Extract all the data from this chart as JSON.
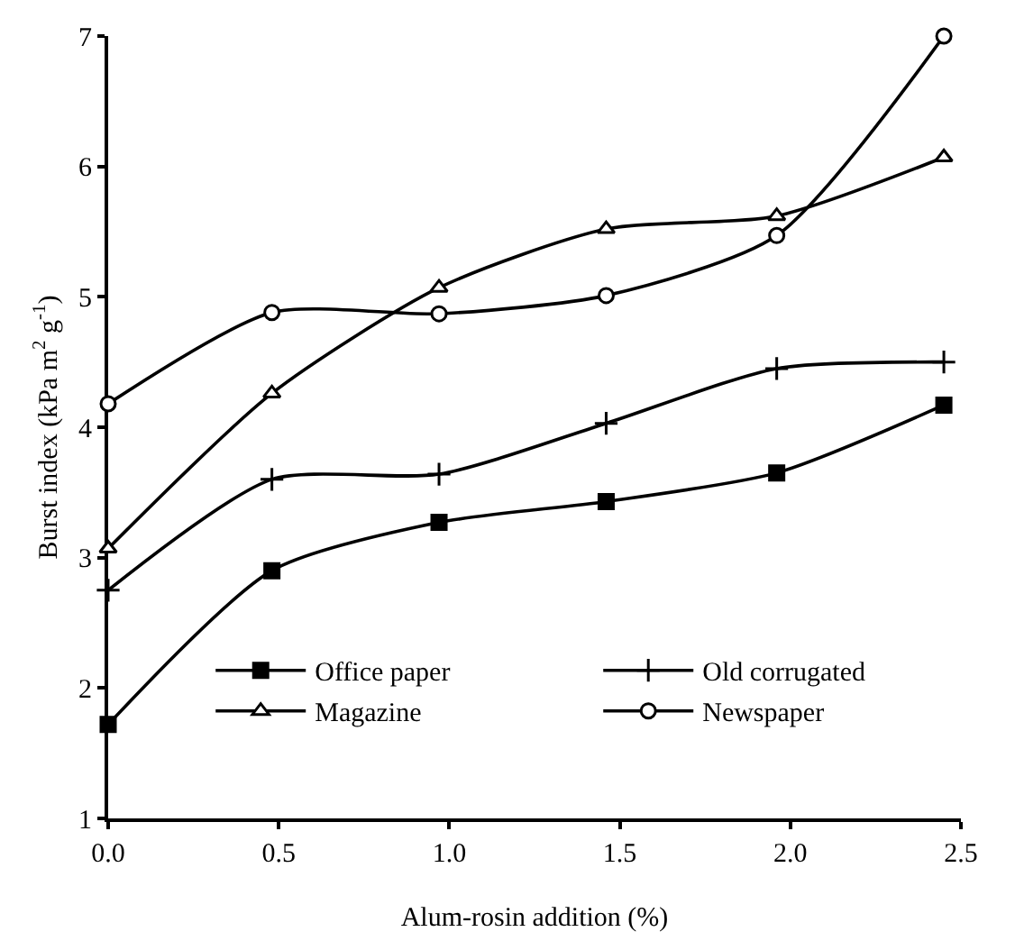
{
  "chart_data": {
    "type": "line",
    "xlabel": "Alum-rosin addition (%)",
    "ylabel": "Burst index (kPa m$^{2}$ g$^{-1}$)",
    "x": [
      0,
      0.48,
      0.97,
      1.46,
      1.96,
      2.45
    ],
    "xlim": [
      0,
      2.5
    ],
    "xticks": [
      {
        "value": 0,
        "label": "0.0"
      },
      0.5,
      {
        "value": 1,
        "label": "1.0"
      },
      1.5,
      {
        "value": 2,
        "label": "2.0"
      },
      2.5
    ],
    "ylim": [
      1,
      7
    ],
    "yticks": [
      1,
      2,
      3,
      4,
      5,
      6,
      7
    ],
    "legend": "bottom",
    "series": [
      {
        "name": "Office paper",
        "color": "#000000",
        "marker": "square",
        "values": [
          1.72,
          2.9,
          3.27,
          3.43,
          3.65,
          4.17
        ]
      },
      {
        "name": "Old corrugated",
        "color": "#000000",
        "marker": "cross",
        "values": [
          2.75,
          3.6,
          3.64,
          4.03,
          4.45,
          4.5
        ]
      },
      {
        "name": "Magazine",
        "color": "#000000",
        "marker": "triangle",
        "values": [
          3.07,
          4.26,
          5.07,
          5.52,
          5.62,
          6.07
        ]
      },
      {
        "name": "Newspaper",
        "color": "#000000",
        "marker": "circle",
        "values": [
          4.18,
          4.88,
          4.87,
          5.01,
          5.47,
          7.0
        ]
      }
    ]
  }
}
